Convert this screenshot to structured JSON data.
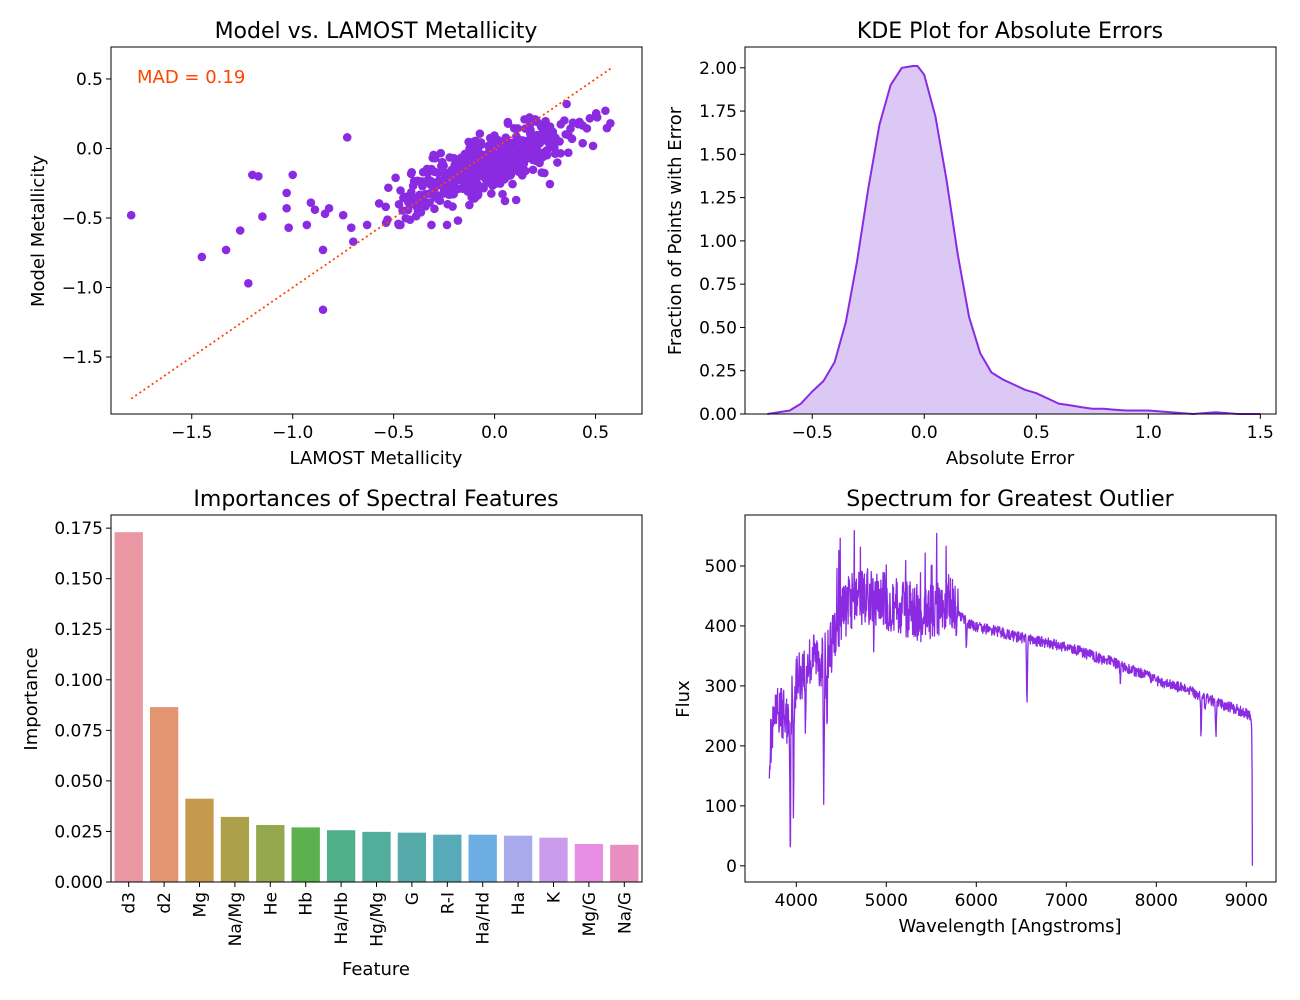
{
  "chart_data": [
    {
      "type": "scatter",
      "title": "Model vs. LAMOST Metallicity",
      "xlabel": "LAMOST Metallicity",
      "ylabel": "Model Metallicity",
      "xlim": [
        -1.9,
        0.73
      ],
      "ylim": [
        -1.91,
        0.73
      ],
      "xticks": [
        -1.5,
        -1.0,
        -0.5,
        0.0,
        0.5
      ],
      "xtick_labels": [
        "−1.5",
        "−1.0",
        "−0.5",
        "0.0",
        "0.5"
      ],
      "yticks": [
        -1.5,
        -1.0,
        -0.5,
        0.0,
        0.5
      ],
      "ytick_labels": [
        "−1.5",
        "−1.0",
        "−0.5",
        "0.0",
        "0.5"
      ],
      "annotation": "MAD = 0.19",
      "annotation_color": "#ff4500",
      "point_color": "#8a2be2",
      "reference_line": {
        "x": [
          -1.8,
          0.58
        ],
        "y": [
          -1.8,
          0.58
        ],
        "style": "dotted",
        "color": "#ff4500"
      },
      "outlier_points": [
        {
          "x": -1.8,
          "y": -0.48
        },
        {
          "x": -1.45,
          "y": -0.78
        },
        {
          "x": -1.33,
          "y": -0.73
        },
        {
          "x": -1.26,
          "y": -0.59
        },
        {
          "x": -1.22,
          "y": -0.97
        },
        {
          "x": -1.2,
          "y": -0.19
        },
        {
          "x": -1.17,
          "y": -0.2
        },
        {
          "x": -1.15,
          "y": -0.49
        },
        {
          "x": -1.02,
          "y": -0.57
        },
        {
          "x": -1.03,
          "y": -0.32
        },
        {
          "x": -1.03,
          "y": -0.43
        },
        {
          "x": -1.0,
          "y": -0.19
        },
        {
          "x": -0.93,
          "y": -0.55
        },
        {
          "x": -0.91,
          "y": -0.39
        },
        {
          "x": -0.89,
          "y": -0.44
        },
        {
          "x": -0.85,
          "y": -1.16
        },
        {
          "x": -0.85,
          "y": -0.73
        },
        {
          "x": -0.84,
          "y": -0.47
        },
        {
          "x": -0.82,
          "y": -0.43
        },
        {
          "x": -0.73,
          "y": 0.08
        },
        {
          "x": -0.7,
          "y": -0.67
        },
        {
          "x": -0.71,
          "y": -0.57
        }
      ],
      "cluster": {
        "count": 520,
        "x_center": -0.05,
        "x_sd": 0.22,
        "slope": 0.6,
        "intercept": -0.1,
        "y_noise_sd": 0.1
      }
    },
    {
      "type": "area",
      "title": "KDE Plot for Absolute Errors",
      "xlabel": "Absolute Error",
      "ylabel": "Fraction of Points with Error",
      "xlim": [
        -0.8,
        1.57
      ],
      "ylim": [
        0,
        2.12
      ],
      "xticks": [
        -0.5,
        0.0,
        0.5,
        1.0,
        1.5
      ],
      "xtick_labels": [
        "−0.5",
        "0.0",
        "0.5",
        "1.0",
        "1.5"
      ],
      "yticks": [
        0.0,
        0.25,
        0.5,
        0.75,
        1.0,
        1.25,
        1.5,
        1.75,
        2.0
      ],
      "ytick_labels": [
        "0.00",
        "0.25",
        "0.50",
        "0.75",
        "1.00",
        "1.25",
        "1.50",
        "1.75",
        "2.00"
      ],
      "line_color": "#8a2be2",
      "fill_color": "#dcc8f5",
      "x": [
        -0.7,
        -0.6,
        -0.55,
        -0.5,
        -0.45,
        -0.4,
        -0.35,
        -0.3,
        -0.25,
        -0.2,
        -0.15,
        -0.1,
        -0.05,
        -0.03,
        0.0,
        0.05,
        0.1,
        0.15,
        0.2,
        0.25,
        0.3,
        0.35,
        0.4,
        0.45,
        0.5,
        0.55,
        0.6,
        0.65,
        0.7,
        0.75,
        0.8,
        0.85,
        0.9,
        0.95,
        1.0,
        1.05,
        1.1,
        1.15,
        1.2,
        1.25,
        1.3,
        1.35,
        1.4,
        1.45,
        1.5
      ],
      "y": [
        0.0,
        0.02,
        0.06,
        0.13,
        0.19,
        0.3,
        0.53,
        0.88,
        1.3,
        1.67,
        1.9,
        2.0,
        2.01,
        2.01,
        1.96,
        1.72,
        1.35,
        0.92,
        0.56,
        0.35,
        0.24,
        0.2,
        0.17,
        0.14,
        0.12,
        0.09,
        0.06,
        0.05,
        0.04,
        0.03,
        0.03,
        0.025,
        0.02,
        0.02,
        0.02,
        0.015,
        0.01,
        0.005,
        0.0,
        0.005,
        0.01,
        0.005,
        0.0,
        0.0,
        0.0
      ]
    },
    {
      "type": "bar",
      "title": "Importances of Spectral Features",
      "xlabel": "Feature",
      "ylabel": "Importance",
      "ylim": [
        0,
        0.1815
      ],
      "yticks": [
        0.0,
        0.025,
        0.05,
        0.075,
        0.1,
        0.125,
        0.15,
        0.175
      ],
      "ytick_labels": [
        "0.000",
        "0.025",
        "0.050",
        "0.075",
        "0.100",
        "0.125",
        "0.150",
        "0.175"
      ],
      "categories": [
        "d3",
        "d2",
        "Mg",
        "Na/Mg",
        "He",
        "Hb",
        "Ha/Hb",
        "Hg/Mg",
        "G",
        "R-I",
        "Ha/Hd",
        "Ha",
        "K",
        "Mg/G",
        "Na/G"
      ],
      "values": [
        0.173,
        0.0865,
        0.0412,
        0.0322,
        0.0282,
        0.027,
        0.0256,
        0.0248,
        0.0244,
        0.0234,
        0.0234,
        0.0229,
        0.0219,
        0.0188,
        0.0184
      ],
      "colors": [
        "#ea96a3",
        "#e39572",
        "#c59a4d",
        "#aca04b",
        "#96a84e",
        "#5cb04e",
        "#50b087",
        "#52ae9c",
        "#55aba9",
        "#57aab8",
        "#6caee3",
        "#a9aaec",
        "#cb9ceb",
        "#e78fe3",
        "#e88fbf"
      ]
    },
    {
      "type": "line",
      "title": "Spectrum for Greatest Outlier",
      "xlabel": "Wavelength [Angstroms]",
      "ylabel": "Flux",
      "xlim": [
        3430,
        9330
      ],
      "ylim": [
        -27,
        585
      ],
      "xticks": [
        4000,
        5000,
        6000,
        7000,
        8000,
        9000
      ],
      "xtick_labels": [
        "4000",
        "5000",
        "6000",
        "7000",
        "8000",
        "9000"
      ],
      "yticks": [
        0,
        100,
        200,
        300,
        400,
        500
      ],
      "ytick_labels": [
        "0",
        "100",
        "200",
        "300",
        "400",
        "500"
      ],
      "line_color": "#8a2be2",
      "continuum": {
        "x": [
          3700,
          3750,
          3800,
          3850,
          3900,
          3950,
          4000,
          4100,
          4200,
          4300,
          4400,
          4500,
          4600,
          4800,
          5000,
          5200,
          5400,
          5600,
          5700,
          5800,
          5900,
          6000,
          6200,
          6500,
          7000,
          7500,
          8000,
          8400,
          8700,
          9000,
          9070
        ],
        "y": [
          190,
          230,
          260,
          255,
          240,
          280,
          310,
          330,
          350,
          340,
          370,
          420,
          440,
          450,
          440,
          430,
          420,
          430,
          440,
          420,
          405,
          398,
          392,
          380,
          365,
          340,
          310,
          290,
          270,
          255,
          245
        ]
      },
      "absorption_lines": [
        {
          "x": 3933,
          "y": 30
        },
        {
          "x": 3968,
          "y": 80
        },
        {
          "x": 4101,
          "y": 220
        },
        {
          "x": 4305,
          "y": 70
        },
        {
          "x": 4340,
          "y": 230
        },
        {
          "x": 4861,
          "y": 340
        },
        {
          "x": 5890,
          "y": 360
        },
        {
          "x": 6563,
          "y": 270
        },
        {
          "x": 7600,
          "y": 310
        },
        {
          "x": 8498,
          "y": 215
        },
        {
          "x": 8542,
          "y": 255
        },
        {
          "x": 8662,
          "y": 215
        },
        {
          "x": 9070,
          "y": 0
        }
      ]
    }
  ]
}
